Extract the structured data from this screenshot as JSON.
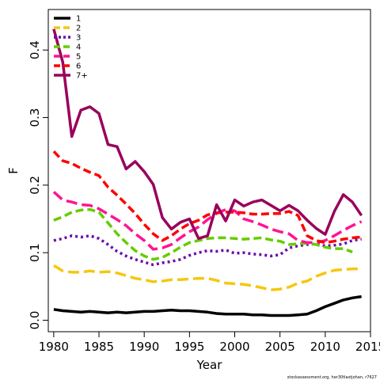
{
  "chart_data": {
    "type": "line",
    "xlabel": "Year",
    "ylabel": "F",
    "xlim": [
      1979.4,
      2015
    ],
    "ylim": [
      -0.017,
      0.46
    ],
    "x_ticks": [
      1980,
      1985,
      1990,
      1995,
      2000,
      2005,
      2010,
      2015
    ],
    "y_ticks": [
      0.0,
      0.1,
      0.2,
      0.3,
      0.4
    ],
    "y_tick_labels": [
      "0.0",
      "0.1",
      "0.2",
      "0.3",
      "0.4"
    ],
    "grid": false,
    "legend_position": "top-left",
    "credit": "stockassessment.org, her30tlastjohan, r7627",
    "series": [
      {
        "name": "1",
        "color": "#000000",
        "dash": "solid",
        "x": [
          1980,
          1981,
          1982,
          1983,
          1984,
          1985,
          1986,
          1987,
          1988,
          1989,
          1990,
          1991,
          1992,
          1993,
          1994,
          1995,
          1996,
          1997,
          1998,
          1999,
          2000,
          2001,
          2002,
          2003,
          2004,
          2005,
          2006,
          2007,
          2008,
          2009,
          2010,
          2011,
          2012,
          2013,
          2014
        ],
        "y": [
          0.016,
          0.014,
          0.013,
          0.012,
          0.013,
          0.012,
          0.011,
          0.012,
          0.011,
          0.012,
          0.013,
          0.013,
          0.014,
          0.015,
          0.014,
          0.014,
          0.013,
          0.012,
          0.01,
          0.009,
          0.009,
          0.009,
          0.008,
          0.008,
          0.007,
          0.007,
          0.007,
          0.008,
          0.009,
          0.014,
          0.02,
          0.025,
          0.03,
          0.033,
          0.035
        ]
      },
      {
        "name": "2",
        "color": "#F5C710",
        "dash": "long",
        "x": [
          1980,
          1981,
          1982,
          1983,
          1984,
          1985,
          1986,
          1987,
          1988,
          1989,
          1990,
          1991,
          1992,
          1993,
          1994,
          1995,
          1996,
          1997,
          1998,
          1999,
          2000,
          2001,
          2002,
          2003,
          2004,
          2005,
          2006,
          2007,
          2008,
          2009,
          2010,
          2011,
          2012,
          2013,
          2014
        ],
        "y": [
          0.081,
          0.073,
          0.071,
          0.071,
          0.073,
          0.071,
          0.072,
          0.07,
          0.066,
          0.062,
          0.06,
          0.057,
          0.058,
          0.06,
          0.06,
          0.061,
          0.062,
          0.062,
          0.059,
          0.055,
          0.054,
          0.053,
          0.051,
          0.048,
          0.045,
          0.046,
          0.049,
          0.055,
          0.058,
          0.065,
          0.07,
          0.074,
          0.075,
          0.076,
          0.076
        ]
      },
      {
        "name": "3",
        "color": "#6A0DAD",
        "dash": "dot",
        "x": [
          1980,
          1981,
          1982,
          1983,
          1984,
          1985,
          1986,
          1987,
          1988,
          1989,
          1990,
          1991,
          1992,
          1993,
          1994,
          1995,
          1996,
          1997,
          1998,
          1999,
          2000,
          2001,
          2002,
          2003,
          2004,
          2005,
          2006,
          2007,
          2008,
          2009,
          2010,
          2011,
          2012,
          2013,
          2014
        ],
        "y": [
          0.118,
          0.121,
          0.125,
          0.123,
          0.125,
          0.121,
          0.112,
          0.102,
          0.095,
          0.09,
          0.086,
          0.082,
          0.085,
          0.087,
          0.09,
          0.096,
          0.1,
          0.103,
          0.102,
          0.104,
          0.099,
          0.1,
          0.098,
          0.097,
          0.095,
          0.097,
          0.107,
          0.11,
          0.112,
          0.113,
          0.11,
          0.111,
          0.113,
          0.118,
          0.12
        ]
      },
      {
        "name": "4",
        "color": "#66CC00",
        "dash": "dash",
        "x": [
          1980,
          1981,
          1982,
          1983,
          1984,
          1985,
          1986,
          1987,
          1988,
          1989,
          1990,
          1991,
          1992,
          1993,
          1994,
          1995,
          1996,
          1997,
          1998,
          1999,
          2000,
          2001,
          2002,
          2003,
          2004,
          2005,
          2006,
          2007,
          2008,
          2009,
          2010,
          2011,
          2012,
          2013
        ],
        "y": [
          0.148,
          0.153,
          0.16,
          0.163,
          0.164,
          0.16,
          0.144,
          0.128,
          0.115,
          0.103,
          0.095,
          0.09,
          0.093,
          0.1,
          0.108,
          0.115,
          0.118,
          0.121,
          0.122,
          0.122,
          0.121,
          0.12,
          0.121,
          0.122,
          0.119,
          0.117,
          0.112,
          0.113,
          0.114,
          0.112,
          0.108,
          0.106,
          0.106,
          0.101
        ]
      },
      {
        "name": "5",
        "color": "#FF1493",
        "dash": "long",
        "x": [
          1980,
          1981,
          1982,
          1983,
          1984,
          1985,
          1986,
          1987,
          1988,
          1989,
          1990,
          1991,
          1992,
          1993,
          1994,
          1995,
          1996,
          1997,
          1998,
          1999,
          2000,
          2001,
          2002,
          2003,
          2004,
          2005,
          2006,
          2007,
          2008,
          2009,
          2010,
          2011,
          2012,
          2013,
          2014
        ],
        "y": [
          0.19,
          0.178,
          0.175,
          0.171,
          0.17,
          0.165,
          0.157,
          0.149,
          0.14,
          0.128,
          0.118,
          0.105,
          0.107,
          0.112,
          0.122,
          0.131,
          0.138,
          0.149,
          0.158,
          0.164,
          0.162,
          0.15,
          0.146,
          0.141,
          0.135,
          0.131,
          0.128,
          0.118,
          0.115,
          0.115,
          0.118,
          0.125,
          0.133,
          0.14,
          0.146
        ]
      },
      {
        "name": "6",
        "color": "#FF0000",
        "dash": "dash",
        "x": [
          1980,
          1981,
          1982,
          1983,
          1984,
          1985,
          1986,
          1987,
          1988,
          1989,
          1990,
          1991,
          1992,
          1993,
          1994,
          1995,
          1996,
          1997,
          1998,
          1999,
          2000,
          2001,
          2002,
          2003,
          2004,
          2005,
          2006,
          2007,
          2008,
          2009,
          2010,
          2011,
          2012,
          2013,
          2014
        ],
        "y": [
          0.25,
          0.236,
          0.232,
          0.225,
          0.219,
          0.214,
          0.197,
          0.185,
          0.172,
          0.158,
          0.142,
          0.128,
          0.118,
          0.125,
          0.135,
          0.143,
          0.148,
          0.156,
          0.159,
          0.16,
          0.16,
          0.159,
          0.157,
          0.157,
          0.158,
          0.158,
          0.161,
          0.155,
          0.125,
          0.118,
          0.115,
          0.117,
          0.12,
          0.122,
          0.123
        ]
      },
      {
        "name": "7+",
        "color": "#99005C",
        "dash": "solid",
        "x": [
          1980,
          1981,
          1982,
          1983,
          1984,
          1985,
          1986,
          1987,
          1988,
          1989,
          1990,
          1991,
          1992,
          1993,
          1994,
          1995,
          1996,
          1997,
          1998,
          1999,
          2000,
          2001,
          2002,
          2003,
          2004,
          2005,
          2006,
          2007,
          2008,
          2009,
          2010,
          2011,
          2012,
          2013,
          2014
        ],
        "y": [
          0.431,
          0.382,
          0.272,
          0.311,
          0.316,
          0.306,
          0.26,
          0.257,
          0.224,
          0.235,
          0.22,
          0.201,
          0.152,
          0.135,
          0.145,
          0.15,
          0.121,
          0.125,
          0.171,
          0.147,
          0.178,
          0.169,
          0.175,
          0.178,
          0.17,
          0.162,
          0.17,
          0.162,
          0.148,
          0.136,
          0.127,
          0.161,
          0.186,
          0.175,
          0.155
        ]
      }
    ]
  }
}
